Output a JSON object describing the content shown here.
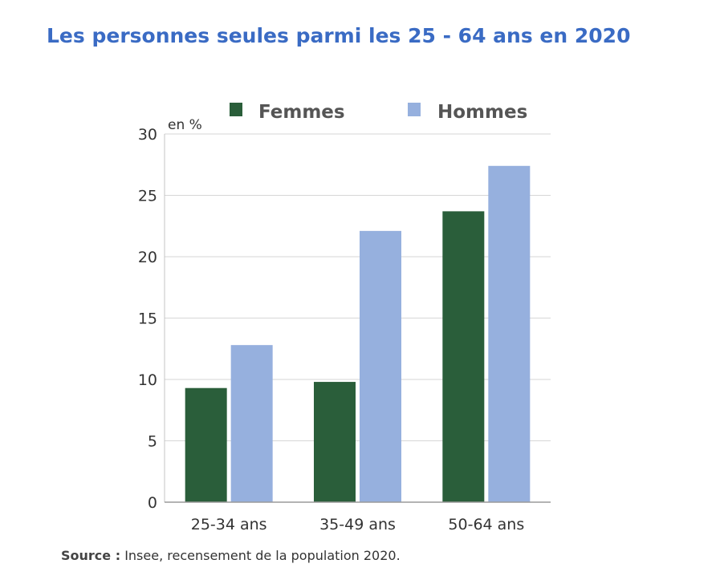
{
  "title": "Les personnes seules parmi les 25 - 64 ans en 2020",
  "source_label": "Source :",
  "source_text": " Insee, recensement de la population 2020.",
  "chart_data": {
    "type": "bar",
    "title": "Les personnes seules parmi les 25 - 64 ans en 2020",
    "ylabel": "en %",
    "xlabel": "",
    "categories": [
      "25-34 ans",
      "35-49 ans",
      "50-64 ans"
    ],
    "series": [
      {
        "name": "Femmes",
        "color": "#2a5e3a",
        "values": [
          9.3,
          9.8,
          23.7
        ]
      },
      {
        "name": "Hommes",
        "color": "#96b0de",
        "values": [
          12.8,
          22.1,
          27.4
        ]
      }
    ],
    "ylim": [
      0,
      30
    ],
    "yticks": [
      0,
      5,
      10,
      15,
      20,
      25,
      30
    ],
    "grid": true,
    "legend": "top"
  }
}
